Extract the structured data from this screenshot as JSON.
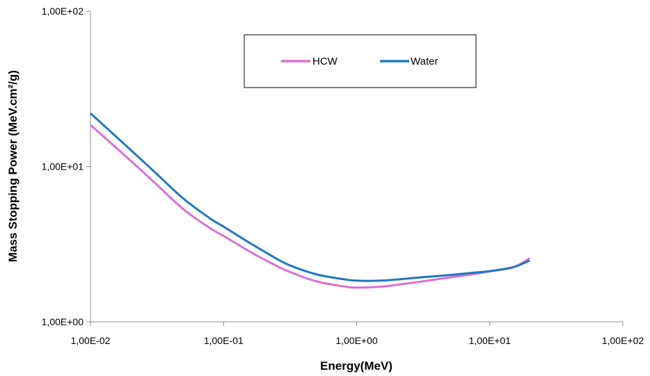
{
  "chart_data": {
    "type": "line",
    "title": "",
    "xlabel": "Energy(MeV)",
    "ylabel": "Mass Stopping Power (MeV.cm²/g)",
    "x_scale": "log",
    "y_scale": "log",
    "xlim": [
      0.01,
      100
    ],
    "ylim": [
      1,
      100
    ],
    "x_ticks": [
      {
        "value": 0.01,
        "label": "1,00E-02"
      },
      {
        "value": 0.1,
        "label": "1,00E-01"
      },
      {
        "value": 1,
        "label": "1,00E+00"
      },
      {
        "value": 10,
        "label": "1,00E+01"
      },
      {
        "value": 100,
        "label": "1,00E+02"
      }
    ],
    "y_ticks": [
      {
        "value": 1,
        "label": "1,00E+00"
      },
      {
        "value": 10,
        "label": "1,00E+01"
      },
      {
        "value": 100,
        "label": "1,00E+02"
      }
    ],
    "grid": false,
    "legend_position": "top-center",
    "x": [
      0.01,
      0.02,
      0.03,
      0.05,
      0.08,
      0.1,
      0.15,
      0.2,
      0.3,
      0.5,
      0.8,
      1,
      1.5,
      2,
      3,
      5,
      8,
      10,
      15,
      20
    ],
    "series": [
      {
        "name": "HCW",
        "color": "#DA70D6",
        "values": [
          18.5,
          10.9,
          7.93,
          5.3,
          3.98,
          3.57,
          2.9,
          2.53,
          2.13,
          1.82,
          1.69,
          1.66,
          1.68,
          1.73,
          1.81,
          1.93,
          2.04,
          2.11,
          2.24,
          2.57
        ]
      },
      {
        "name": "Water",
        "color": "#1F77C0",
        "values": [
          22.0,
          12.8,
          9.3,
          6.2,
          4.6,
          4.1,
          3.3,
          2.85,
          2.35,
          2.02,
          1.88,
          1.84,
          1.84,
          1.87,
          1.93,
          2.0,
          2.08,
          2.12,
          2.25,
          2.48
        ]
      }
    ]
  }
}
